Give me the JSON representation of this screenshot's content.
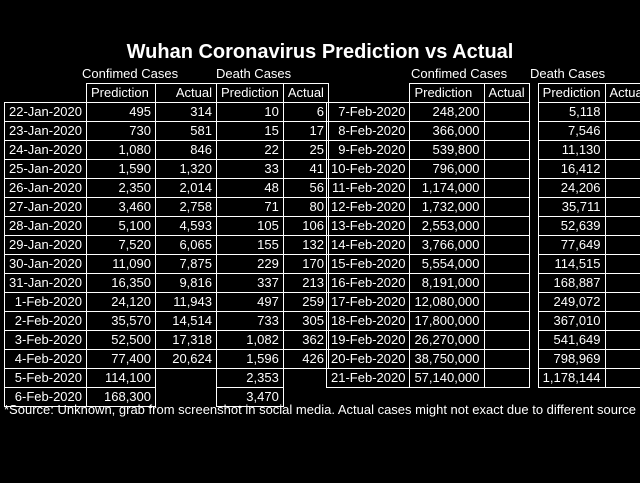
{
  "title": "Wuhan Coronavirus Prediction vs Actual",
  "group_labels": {
    "confirmed_left": "Confimed Cases",
    "death_left": "Death Cases",
    "confirmed_right": "Confimed Cases",
    "death_right": "Death Cases"
  },
  "headers": {
    "prediction": "Prediction",
    "actual": "Actual"
  },
  "left_rows": [
    {
      "date": "22-Jan-2020",
      "cp": "495",
      "ca": "314",
      "dp": "10",
      "da": "6"
    },
    {
      "date": "23-Jan-2020",
      "cp": "730",
      "ca": "581",
      "dp": "15",
      "da": "17"
    },
    {
      "date": "24-Jan-2020",
      "cp": "1,080",
      "ca": "846",
      "dp": "22",
      "da": "25"
    },
    {
      "date": "25-Jan-2020",
      "cp": "1,590",
      "ca": "1,320",
      "dp": "33",
      "da": "41"
    },
    {
      "date": "26-Jan-2020",
      "cp": "2,350",
      "ca": "2,014",
      "dp": "48",
      "da": "56"
    },
    {
      "date": "27-Jan-2020",
      "cp": "3,460",
      "ca": "2,758",
      "dp": "71",
      "da": "80"
    },
    {
      "date": "28-Jan-2020",
      "cp": "5,100",
      "ca": "4,593",
      "dp": "105",
      "da": "106"
    },
    {
      "date": "29-Jan-2020",
      "cp": "7,520",
      "ca": "6,065",
      "dp": "155",
      "da": "132"
    },
    {
      "date": "30-Jan-2020",
      "cp": "11,090",
      "ca": "7,875",
      "dp": "229",
      "da": "170"
    },
    {
      "date": "31-Jan-2020",
      "cp": "16,350",
      "ca": "9,816",
      "dp": "337",
      "da": "213"
    },
    {
      "date": "1-Feb-2020",
      "cp": "24,120",
      "ca": "11,943",
      "dp": "497",
      "da": "259"
    },
    {
      "date": "2-Feb-2020",
      "cp": "35,570",
      "ca": "14,514",
      "dp": "733",
      "da": "305"
    },
    {
      "date": "3-Feb-2020",
      "cp": "52,500",
      "ca": "17,318",
      "dp": "1,082",
      "da": "362"
    },
    {
      "date": "4-Feb-2020",
      "cp": "77,400",
      "ca": "20,624",
      "dp": "1,596",
      "da": "426"
    },
    {
      "date": "5-Feb-2020",
      "cp": "114,100",
      "ca": "",
      "dp": "2,353",
      "da": ""
    },
    {
      "date": "6-Feb-2020",
      "cp": "168,300",
      "ca": "",
      "dp": "3,470",
      "da": ""
    }
  ],
  "right_rows": [
    {
      "date": "7-Feb-2020",
      "cp": "248,200",
      "ca": "",
      "dp": "5,118",
      "da": ""
    },
    {
      "date": "8-Feb-2020",
      "cp": "366,000",
      "ca": "",
      "dp": "7,546",
      "da": ""
    },
    {
      "date": "9-Feb-2020",
      "cp": "539,800",
      "ca": "",
      "dp": "11,130",
      "da": ""
    },
    {
      "date": "10-Feb-2020",
      "cp": "796,000",
      "ca": "",
      "dp": "16,412",
      "da": ""
    },
    {
      "date": "11-Feb-2020",
      "cp": "1,174,000",
      "ca": "",
      "dp": "24,206",
      "da": ""
    },
    {
      "date": "12-Feb-2020",
      "cp": "1,732,000",
      "ca": "",
      "dp": "35,711",
      "da": ""
    },
    {
      "date": "13-Feb-2020",
      "cp": "2,553,000",
      "ca": "",
      "dp": "52,639",
      "da": ""
    },
    {
      "date": "14-Feb-2020",
      "cp": "3,766,000",
      "ca": "",
      "dp": "77,649",
      "da": ""
    },
    {
      "date": "15-Feb-2020",
      "cp": "5,554,000",
      "ca": "",
      "dp": "114,515",
      "da": ""
    },
    {
      "date": "16-Feb-2020",
      "cp": "8,191,000",
      "ca": "",
      "dp": "168,887",
      "da": ""
    },
    {
      "date": "17-Feb-2020",
      "cp": "12,080,000",
      "ca": "",
      "dp": "249,072",
      "da": ""
    },
    {
      "date": "18-Feb-2020",
      "cp": "17,800,000",
      "ca": "",
      "dp": "367,010",
      "da": ""
    },
    {
      "date": "19-Feb-2020",
      "cp": "26,270,000",
      "ca": "",
      "dp": "541,649",
      "da": ""
    },
    {
      "date": "20-Feb-2020",
      "cp": "38,750,000",
      "ca": "",
      "dp": "798,969",
      "da": ""
    },
    {
      "date": "21-Feb-2020",
      "cp": "57,140,000",
      "ca": "",
      "dp": "1,178,144",
      "da": ""
    }
  ],
  "source_note": "*Source: Unknown, grab from screenshot in social media. Actual cases might not exact due to different source"
}
